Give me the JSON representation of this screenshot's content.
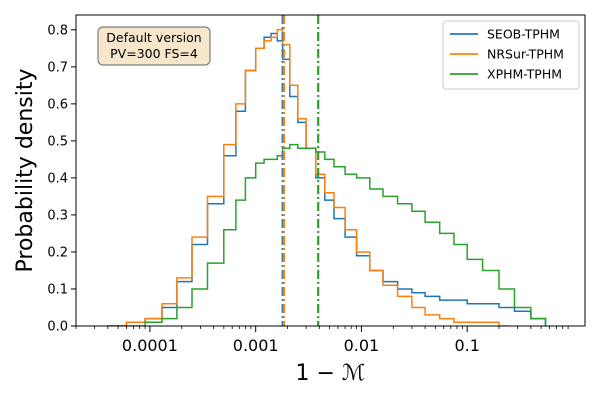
{
  "chart_data": {
    "type": "line",
    "step": true,
    "x_scale": "log",
    "xlabel": "1 − ℳ",
    "ylabel": "Probability density",
    "xlim": [
      2e-05,
      1.3
    ],
    "ylim": [
      0,
      0.84
    ],
    "x_ticks": [
      {
        "value": 0.0001,
        "label": "0.0001"
      },
      {
        "value": 0.001,
        "label": "0.001"
      },
      {
        "value": 0.01,
        "label": "0.01"
      },
      {
        "value": 0.1,
        "label": "0.1"
      }
    ],
    "y_ticks": [
      {
        "value": 0.0,
        "label": "0.0"
      },
      {
        "value": 0.1,
        "label": "0.1"
      },
      {
        "value": 0.2,
        "label": "0.2"
      },
      {
        "value": 0.3,
        "label": "0.3"
      },
      {
        "value": 0.4,
        "label": "0.4"
      },
      {
        "value": 0.5,
        "label": "0.5"
      },
      {
        "value": 0.6,
        "label": "0.6"
      },
      {
        "value": 0.7,
        "label": "0.7"
      },
      {
        "value": 0.8,
        "label": "0.8"
      }
    ],
    "annotation": {
      "lines": [
        "Default version",
        "PV=300 FS=4"
      ],
      "background": "#f5e6cc",
      "border": "#7f7f7f"
    },
    "legend_position": "top-right",
    "series": [
      {
        "name": "SEOB-TPHM",
        "color": "#1f77b4",
        "median": 0.0018,
        "x": [
          4e-05,
          6e-05,
          9e-05,
          0.00013,
          0.00018,
          0.00025,
          0.00035,
          0.0005,
          0.00065,
          0.0008,
          0.001,
          0.0012,
          0.0014,
          0.0016,
          0.0018,
          0.0021,
          0.0025,
          0.003,
          0.0037,
          0.0045,
          0.0055,
          0.007,
          0.009,
          0.012,
          0.016,
          0.022,
          0.03,
          0.04,
          0.055,
          0.075,
          0.1,
          0.14,
          0.2,
          0.28,
          0.4,
          0.55
        ],
        "y": [
          0.0,
          0.01,
          0.02,
          0.05,
          0.12,
          0.22,
          0.33,
          0.46,
          0.58,
          0.69,
          0.75,
          0.78,
          0.79,
          0.77,
          0.72,
          0.62,
          0.55,
          0.48,
          0.4,
          0.34,
          0.29,
          0.24,
          0.19,
          0.15,
          0.12,
          0.1,
          0.09,
          0.08,
          0.07,
          0.07,
          0.06,
          0.06,
          0.05,
          0.04,
          0.02,
          0.0
        ]
      },
      {
        "name": "NRSur-TPHM",
        "color": "#ff7f0e",
        "median": 0.00185,
        "x": [
          4e-05,
          6e-05,
          9e-05,
          0.00013,
          0.00018,
          0.00025,
          0.00035,
          0.0005,
          0.00065,
          0.0008,
          0.001,
          0.0012,
          0.0014,
          0.0016,
          0.0018,
          0.0021,
          0.0025,
          0.003,
          0.0037,
          0.0045,
          0.0055,
          0.007,
          0.009,
          0.012,
          0.016,
          0.022,
          0.03,
          0.04,
          0.055,
          0.075,
          0.1,
          0.14,
          0.2,
          0.25
        ],
        "y": [
          0.0,
          0.01,
          0.02,
          0.06,
          0.13,
          0.24,
          0.35,
          0.49,
          0.6,
          0.69,
          0.75,
          0.77,
          0.78,
          0.8,
          0.76,
          0.65,
          0.56,
          0.48,
          0.41,
          0.36,
          0.32,
          0.26,
          0.2,
          0.15,
          0.11,
          0.08,
          0.05,
          0.03,
          0.02,
          0.01,
          0.01,
          0.01,
          0.0,
          0.0
        ]
      },
      {
        "name": "XPHM-TPHM",
        "color": "#2ca02c",
        "median": 0.0039,
        "x": [
          4e-05,
          6e-05,
          9e-05,
          0.00013,
          0.00018,
          0.00025,
          0.00035,
          0.0005,
          0.00065,
          0.0008,
          0.001,
          0.0012,
          0.0014,
          0.0016,
          0.0018,
          0.0021,
          0.0025,
          0.003,
          0.0037,
          0.0045,
          0.0055,
          0.007,
          0.009,
          0.012,
          0.016,
          0.022,
          0.03,
          0.04,
          0.055,
          0.075,
          0.1,
          0.14,
          0.2,
          0.28,
          0.4,
          0.55
        ],
        "y": [
          0.0,
          0.0,
          0.01,
          0.02,
          0.05,
          0.1,
          0.17,
          0.26,
          0.34,
          0.4,
          0.44,
          0.45,
          0.45,
          0.46,
          0.48,
          0.49,
          0.48,
          0.48,
          0.47,
          0.45,
          0.43,
          0.41,
          0.4,
          0.37,
          0.35,
          0.33,
          0.31,
          0.28,
          0.25,
          0.22,
          0.18,
          0.15,
          0.1,
          0.05,
          0.02,
          0.0
        ]
      }
    ]
  }
}
